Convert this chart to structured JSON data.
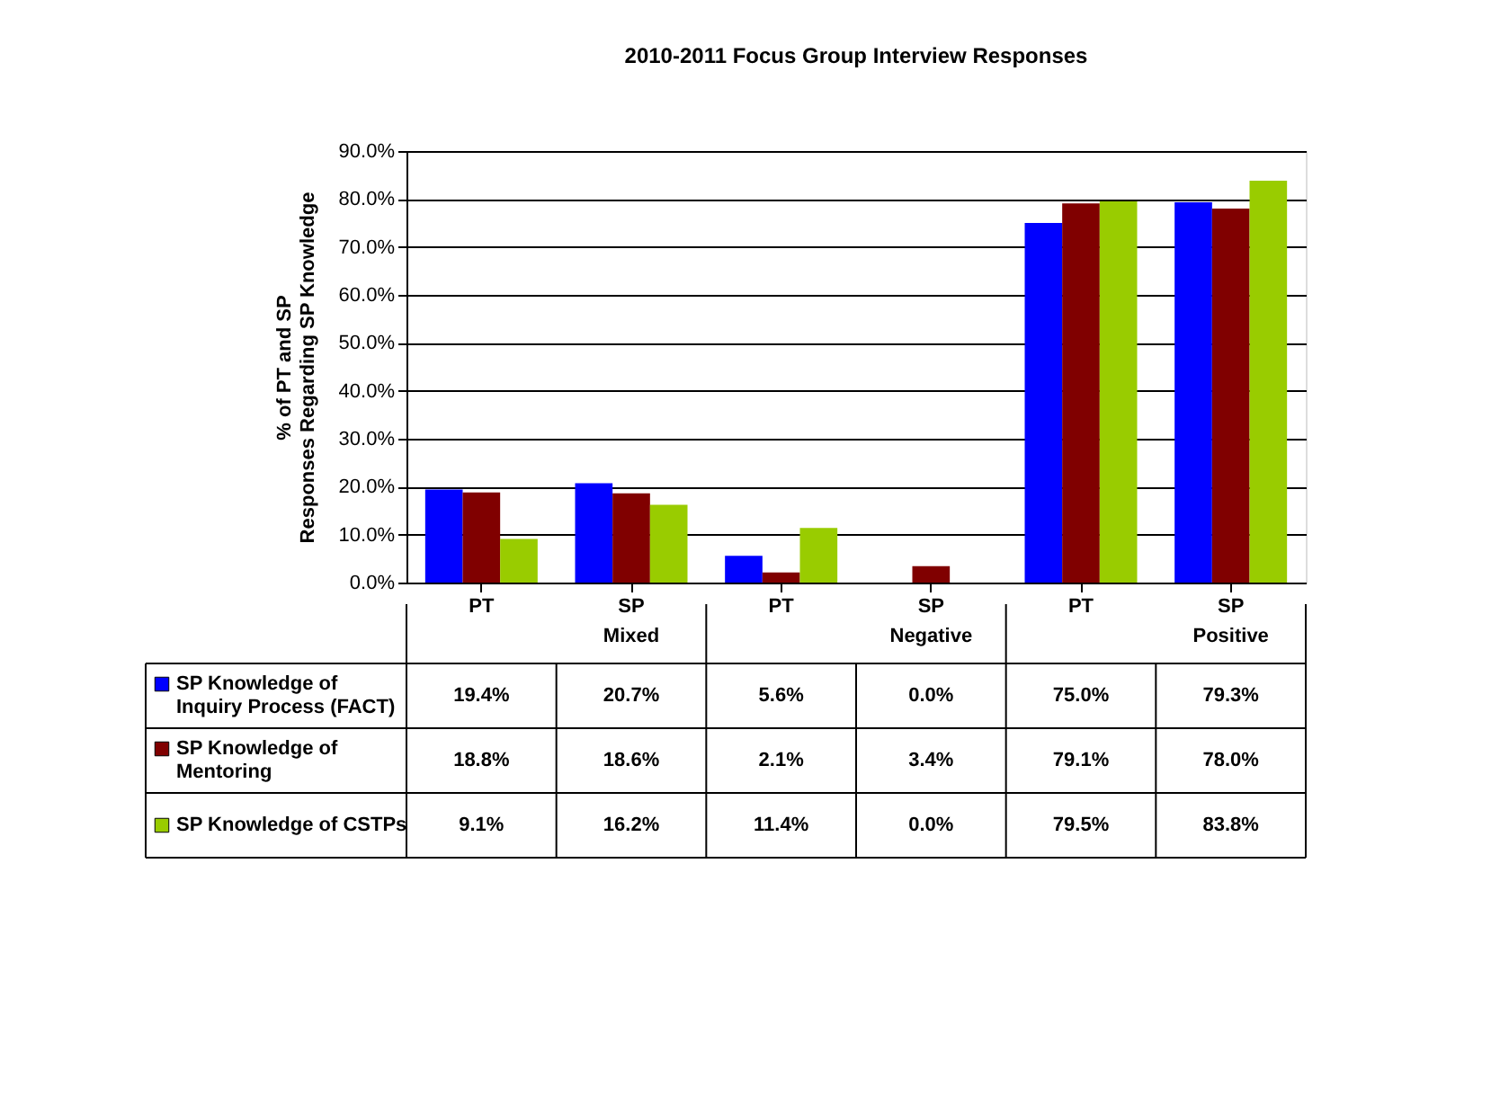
{
  "chart_data": {
    "type": "bar",
    "title": "2010-2011 Focus Group Interview Responses",
    "ylabel": "% of PT and SP Responses Regarding SP Knowledge",
    "categories": [
      "PT",
      "SP",
      "PT",
      "SP",
      "PT",
      "SP"
    ],
    "annotations": [
      "Mixed",
      "Negative",
      "Positive"
    ],
    "series": [
      {
        "name": "SP Knowledge of Inquiry Process (FACT)",
        "color": "#0000ff",
        "values": [
          19.4,
          20.7,
          5.6,
          0.0,
          75.0,
          79.3
        ],
        "value_labels": [
          "19.4%",
          "20.7%",
          "5.6%",
          "0.0%",
          "75.0%",
          "79.3%"
        ]
      },
      {
        "name": "SP Knowledge of Mentoring",
        "color": "#800000",
        "values": [
          18.8,
          18.6,
          2.1,
          3.4,
          79.1,
          78.0
        ],
        "value_labels": [
          "18.8%",
          "18.6%",
          "2.1%",
          "3.4%",
          "79.1%",
          "78.0%"
        ]
      },
      {
        "name": "SP Knowledge of CSTPs",
        "color": "#99cc00",
        "values": [
          9.1,
          16.2,
          11.4,
          0.0,
          79.5,
          83.8
        ],
        "value_labels": [
          "9.1%",
          "16.2%",
          "11.4%",
          "0.0%",
          "79.5%",
          "83.8%"
        ]
      }
    ],
    "ylim": [
      0,
      90
    ],
    "yticks": [
      {
        "value": 0,
        "label": "0.0%"
      },
      {
        "value": 10,
        "label": "10.0%"
      },
      {
        "value": 20,
        "label": "20.0%"
      },
      {
        "value": 30,
        "label": "30.0%"
      },
      {
        "value": 40,
        "label": "40.0%"
      },
      {
        "value": 50,
        "label": "50.0%"
      },
      {
        "value": 60,
        "label": "60.0%"
      },
      {
        "value": 70,
        "label": "70.0%"
      },
      {
        "value": 80,
        "label": "80.0%"
      },
      {
        "value": 90,
        "label": "90.0%"
      }
    ],
    "grid": "y",
    "legend": "bottom left"
  }
}
